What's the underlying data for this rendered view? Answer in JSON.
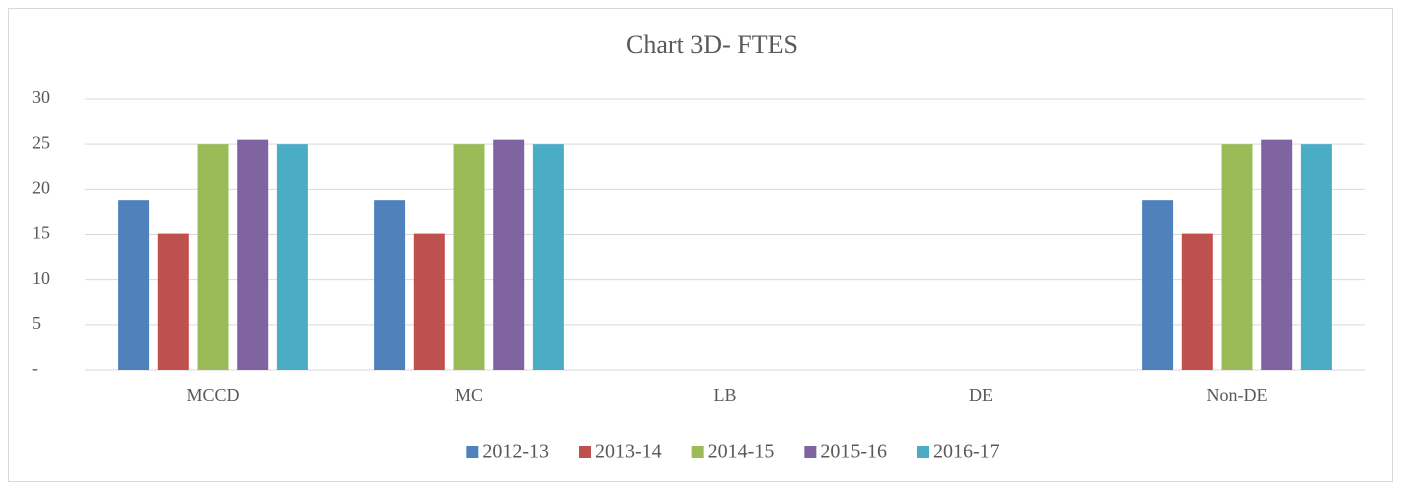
{
  "chart_data": {
    "type": "bar",
    "title": "Chart 3D- FTES",
    "categories": [
      "MCCD",
      "MC",
      "LB",
      "DE",
      "Non-DE"
    ],
    "series": [
      {
        "name": "2012-13",
        "color": "#4f81bd",
        "values": [
          18.8,
          18.8,
          0,
          0,
          18.8
        ]
      },
      {
        "name": "2013-14",
        "color": "#c0504d",
        "values": [
          15.1,
          15.1,
          0,
          0,
          15.1
        ]
      },
      {
        "name": "2014-15",
        "color": "#9bbb59",
        "values": [
          25,
          25,
          0,
          0,
          25
        ]
      },
      {
        "name": "2015-16",
        "color": "#8064a2",
        "values": [
          25.5,
          25.5,
          0,
          0,
          25.5
        ]
      },
      {
        "name": "2016-17",
        "color": "#4bacc6",
        "values": [
          25,
          25,
          0,
          0,
          25
        ]
      }
    ],
    "ylim": [
      0,
      30
    ],
    "yticks": [
      {
        "value": 0,
        "label": "-"
      },
      5,
      10,
      15,
      20,
      25,
      30
    ],
    "grid": true,
    "legend": "bottom"
  }
}
